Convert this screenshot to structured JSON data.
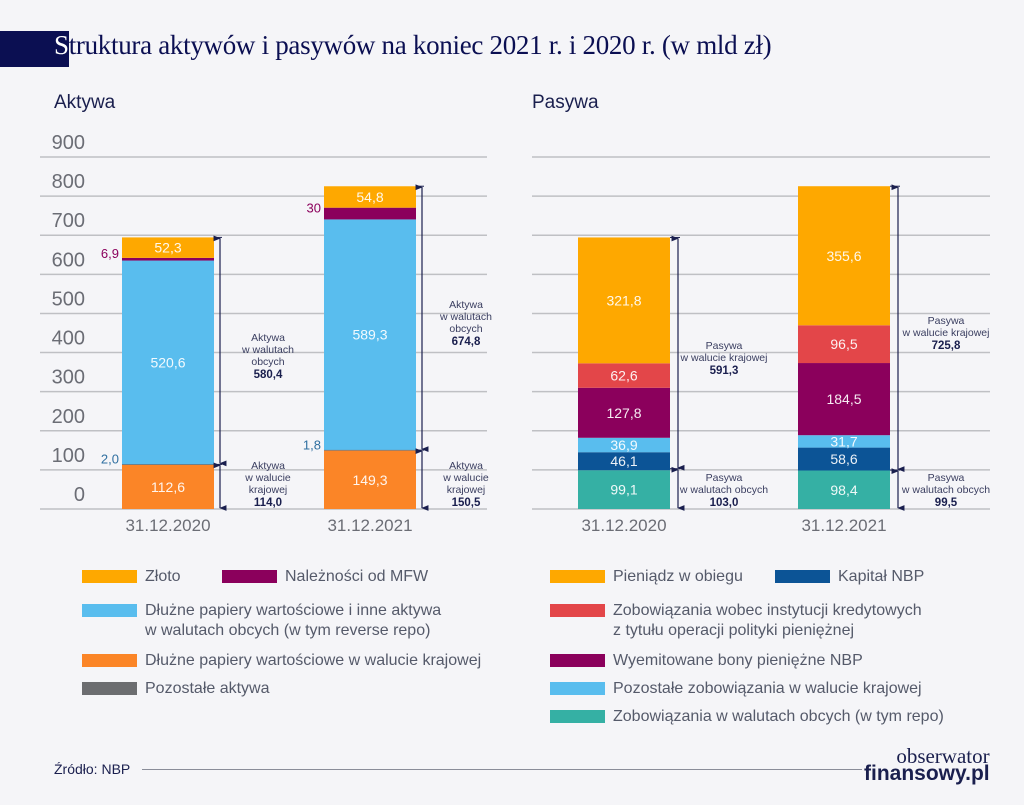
{
  "header": {
    "title_first_letter": "S",
    "title_rest": "truktura aktywów i pasywów na koniec 2021 r. i 2020 r. (w mld zł)"
  },
  "colors": {
    "zloto": "#fea800",
    "mfw": "#8b005c",
    "dluzne_obce": "#59bdee",
    "dluzne_krajowe": "#fb8527",
    "pozostale_aktywa": "#6c6d70",
    "pieniadz": "#fea800",
    "kapital": "#0c5496",
    "zobowiazania_kred": "#e34649",
    "bony": "#8b005c",
    "pozostale_zob": "#59bdee",
    "zob_obce": "#35b0a4",
    "arrow": "#1a1f4e",
    "grid": "#bfc0c4"
  },
  "chart_data": [
    {
      "type": "bar",
      "stacked": true,
      "title": "Aktywa",
      "categories": [
        "31.12.2020",
        "31.12.2021"
      ],
      "ylim": [
        0,
        900
      ],
      "yticks": [
        0,
        100,
        200,
        300,
        400,
        500,
        600,
        700,
        800,
        900
      ],
      "grid": true,
      "series": [
        {
          "name": "Dłużne papiery wartościowe w walucie krajowej",
          "key": "dluzne_krajowe",
          "values": [
            112.6,
            149.3
          ],
          "labels": [
            "112,6",
            "149,3"
          ]
        },
        {
          "name": "Pozostałe aktywa",
          "key": "pozostale_aktywa",
          "values": [
            2.0,
            1.8
          ],
          "labels": [
            "2,0",
            "1,8"
          ],
          "label_outside": true,
          "label_color": "#2f6fa0"
        },
        {
          "name": "Dłużne papiery wartościowe i inne aktywa w walutach obcych (w tym reverse repo)",
          "key": "dluzne_obce",
          "values": [
            520.6,
            589.3
          ],
          "labels": [
            "520,6",
            "589,3"
          ]
        },
        {
          "name": "Należności od MFW",
          "key": "mfw",
          "values": [
            6.9,
            30
          ],
          "labels": [
            "6,9",
            "30"
          ],
          "label_outside": true,
          "label_color": "#8b005c"
        },
        {
          "name": "Złoto",
          "key": "zloto",
          "values": [
            52.3,
            54.8
          ],
          "labels": [
            "52,3",
            "54,8"
          ]
        }
      ],
      "annotations": [
        {
          "category": "31.12.2020",
          "from": 114.0,
          "to": 694.4,
          "lines": [
            "Aktywa",
            "w walutach",
            "obcych"
          ],
          "value": "580,4"
        },
        {
          "category": "31.12.2020",
          "from": 0,
          "to": 114.0,
          "lines": [
            "Aktywa",
            "w walucie",
            "krajowej"
          ],
          "value": "114,0"
        },
        {
          "category": "31.12.2021",
          "from": 150.5,
          "to": 825.3,
          "lines": [
            "Aktywa",
            "w walutach",
            "obcych"
          ],
          "value": "674,8"
        },
        {
          "category": "31.12.2021",
          "from": 0,
          "to": 150.5,
          "lines": [
            "Aktywa",
            "w walucie",
            "krajowej"
          ],
          "value": "150,5"
        }
      ]
    },
    {
      "type": "bar",
      "stacked": true,
      "title": "Pasywa",
      "categories": [
        "31.12.2020",
        "31.12.2021"
      ],
      "ylim": [
        0,
        900
      ],
      "grid": true,
      "series": [
        {
          "name": "Zobowiązania w walutach obcych (w tym repo)",
          "key": "zob_obce",
          "values": [
            99.1,
            98.4
          ],
          "labels": [
            "99,1",
            "98,4"
          ]
        },
        {
          "name": "Kapitał NBP",
          "key": "kapital",
          "values": [
            46.1,
            58.6
          ],
          "labels": [
            "46,1",
            "58,6"
          ]
        },
        {
          "name": "Pozostałe zobowiązania w walucie krajowej",
          "key": "pozostale_zob",
          "values": [
            36.9,
            31.7
          ],
          "labels": [
            "36,9",
            "31,7"
          ]
        },
        {
          "name": "Wyemitowane bony pieniężne NBP",
          "key": "bony",
          "values": [
            127.8,
            184.5
          ],
          "labels": [
            "127,8",
            "184,5"
          ]
        },
        {
          "name": "Zobowiązania wobec instytucji kredytowych z tytułu operacji polityki pieniężnej",
          "key": "zobowiazania_kred",
          "values": [
            62.6,
            96.5
          ],
          "labels": [
            "62,6",
            "96,5"
          ]
        },
        {
          "name": "Pieniądz w obiegu",
          "key": "pieniadz",
          "values": [
            321.8,
            355.6
          ],
          "labels": [
            "321,8",
            "355,6"
          ]
        }
      ],
      "annotations": [
        {
          "category": "31.12.2020",
          "from": 103.0,
          "to": 694.3,
          "lines": [
            "Pasywa",
            "w walucie krajowej"
          ],
          "value": "591,3"
        },
        {
          "category": "31.12.2020",
          "from": 0,
          "to": 103.0,
          "lines": [
            "Pasywa",
            "w walutach obcych"
          ],
          "value": "103,0"
        },
        {
          "category": "31.12.2021",
          "from": 99.5,
          "to": 825.3,
          "lines": [
            "Pasywa",
            "w walucie krajowej"
          ],
          "value": "725,8"
        },
        {
          "category": "31.12.2021",
          "from": 0,
          "to": 99.5,
          "lines": [
            "Pasywa",
            "w walutach obcych"
          ],
          "value": "99,5"
        }
      ]
    }
  ],
  "legend_left": [
    {
      "key": "zloto",
      "label": "Złoto"
    },
    {
      "key": "mfw",
      "label": "Należności od MFW"
    },
    {
      "key": "dluzne_obce",
      "label": "Dłużne papiery wartościowe i inne aktywa",
      "label2": "w walutach obcych (w tym reverse repo)"
    },
    {
      "key": "dluzne_krajowe",
      "label": "Dłużne papiery wartościowe w walucie krajowej"
    },
    {
      "key": "pozostale_aktywa",
      "label": "Pozostałe aktywa"
    }
  ],
  "legend_right": [
    {
      "key": "pieniadz",
      "label": "Pieniądz w obiegu"
    },
    {
      "key": "kapital",
      "label": "Kapitał NBP"
    },
    {
      "key": "zobowiazania_kred",
      "label": "Zobowiązania wobec instytucji kredytowych",
      "label2": "z tytułu operacji polityki pieniężnej"
    },
    {
      "key": "bony",
      "label": "Wyemitowane bony pieniężne NBP"
    },
    {
      "key": "pozostale_zob",
      "label": "Pozostałe zobowiązania w walucie krajowej"
    },
    {
      "key": "zob_obce",
      "label": "Zobowiązania w walutach obcych (w tym repo)"
    }
  ],
  "footer": {
    "source": "Źródło: NBP",
    "logo_line1": "obserwator",
    "logo_line2": "finansowy.pl"
  }
}
